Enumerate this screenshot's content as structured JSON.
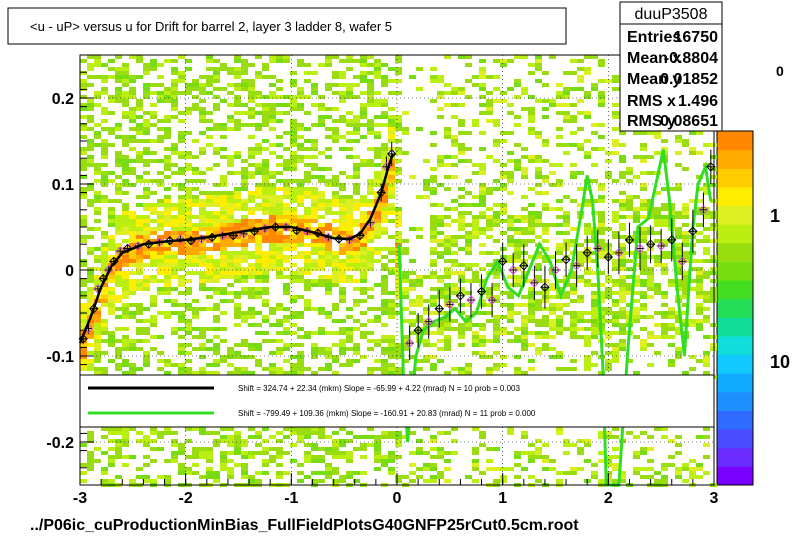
{
  "title": "<u - uP>       versus   u for Drift for barrel 2, layer 3 ladder 8, wafer 5",
  "footer": "../P06ic_cuProductionMinBias_FullFieldPlotsG40GNFP25rCut0.5cm.root",
  "stats": {
    "name": "duuP3508",
    "rows": [
      {
        "label": "Entries",
        "value": "16750"
      },
      {
        "label": "Mean x",
        "value": "-0.8804"
      },
      {
        "label": "Mean y",
        "value": "0.01852"
      },
      {
        "label": "RMS x",
        "value": "1.496"
      },
      {
        "label": "RMS y",
        "value": "0.08651"
      }
    ]
  },
  "legend": {
    "entries": [
      {
        "color": "#000000",
        "text": "Shift =   324.74 + 22.34 (mkm) Slope =   -65.99 + 4.22 (mrad)  N = 10 prob = 0.003"
      },
      {
        "color": "#33dd22",
        "text": "Shift =  -799.49 + 109.36 (mkm) Slope =  -160.91 + 20.83 (mrad)  N = 11 prob = 0.000"
      }
    ]
  },
  "colorbar": {
    "tick_labels": [
      "1",
      "10"
    ],
    "top_label": "0"
  },
  "chart_data": {
    "type": "scatter",
    "xlim": [
      -3,
      3
    ],
    "ylim": [
      -0.25,
      0.25
    ],
    "x_ticks": [
      -3,
      -2,
      -1,
      0,
      1,
      2,
      3
    ],
    "x_tick_labels": [
      "-3",
      "-2",
      "-1",
      "0",
      "1",
      "2",
      "3"
    ],
    "y_ticks": [
      -0.2,
      -0.1,
      0,
      0.1,
      0.2
    ],
    "y_tick_labels": [
      "-0.2",
      "-0.1",
      "0",
      "0.1",
      "0.2"
    ],
    "grid": true,
    "profile_points": [
      {
        "x": -2.97,
        "y": -0.08,
        "e": 0.006
      },
      {
        "x": -2.92,
        "y": -0.068,
        "e": 0.006
      },
      {
        "x": -2.87,
        "y": -0.045,
        "e": 0.006
      },
      {
        "x": -2.83,
        "y": -0.022,
        "e": 0.005
      },
      {
        "x": -2.78,
        "y": -0.01,
        "e": 0.005
      },
      {
        "x": -2.73,
        "y": 0.0,
        "e": 0.005
      },
      {
        "x": -2.68,
        "y": 0.01,
        "e": 0.005
      },
      {
        "x": -2.62,
        "y": 0.022,
        "e": 0.004
      },
      {
        "x": -2.55,
        "y": 0.025,
        "e": 0.004
      },
      {
        "x": -2.45,
        "y": 0.028,
        "e": 0.004
      },
      {
        "x": -2.35,
        "y": 0.03,
        "e": 0.004
      },
      {
        "x": -2.25,
        "y": 0.032,
        "e": 0.004
      },
      {
        "x": -2.15,
        "y": 0.034,
        "e": 0.004
      },
      {
        "x": -2.05,
        "y": 0.036,
        "e": 0.004
      },
      {
        "x": -1.95,
        "y": 0.034,
        "e": 0.004
      },
      {
        "x": -1.85,
        "y": 0.036,
        "e": 0.004
      },
      {
        "x": -1.75,
        "y": 0.038,
        "e": 0.004
      },
      {
        "x": -1.65,
        "y": 0.04,
        "e": 0.004
      },
      {
        "x": -1.55,
        "y": 0.04,
        "e": 0.004
      },
      {
        "x": -1.45,
        "y": 0.042,
        "e": 0.004
      },
      {
        "x": -1.35,
        "y": 0.045,
        "e": 0.004
      },
      {
        "x": -1.25,
        "y": 0.048,
        "e": 0.004
      },
      {
        "x": -1.15,
        "y": 0.05,
        "e": 0.004
      },
      {
        "x": -1.05,
        "y": 0.05,
        "e": 0.004
      },
      {
        "x": -0.95,
        "y": 0.046,
        "e": 0.004
      },
      {
        "x": -0.85,
        "y": 0.045,
        "e": 0.004
      },
      {
        "x": -0.75,
        "y": 0.043,
        "e": 0.004
      },
      {
        "x": -0.65,
        "y": 0.038,
        "e": 0.004
      },
      {
        "x": -0.55,
        "y": 0.036,
        "e": 0.004
      },
      {
        "x": -0.45,
        "y": 0.035,
        "e": 0.004
      },
      {
        "x": -0.35,
        "y": 0.04,
        "e": 0.005
      },
      {
        "x": -0.25,
        "y": 0.055,
        "e": 0.006
      },
      {
        "x": -0.15,
        "y": 0.09,
        "e": 0.01
      },
      {
        "x": -0.1,
        "y": 0.12,
        "e": 0.012
      },
      {
        "x": -0.05,
        "y": 0.135,
        "e": 0.014
      },
      {
        "x": 0.12,
        "y": -0.085,
        "e": 0.02
      },
      {
        "x": 0.2,
        "y": -0.07,
        "e": 0.02
      },
      {
        "x": 0.3,
        "y": -0.06,
        "e": 0.02
      },
      {
        "x": 0.4,
        "y": -0.045,
        "e": 0.022
      },
      {
        "x": 0.5,
        "y": -0.04,
        "e": 0.02
      },
      {
        "x": 0.6,
        "y": -0.03,
        "e": 0.02
      },
      {
        "x": 0.7,
        "y": -0.035,
        "e": 0.02
      },
      {
        "x": 0.8,
        "y": -0.025,
        "e": 0.02
      },
      {
        "x": 0.9,
        "y": -0.035,
        "e": 0.02
      },
      {
        "x": 1.0,
        "y": 0.01,
        "e": 0.022
      },
      {
        "x": 1.1,
        "y": 0.0,
        "e": 0.02
      },
      {
        "x": 1.2,
        "y": 0.005,
        "e": 0.025
      },
      {
        "x": 1.3,
        "y": -0.015,
        "e": 0.02
      },
      {
        "x": 1.4,
        "y": -0.02,
        "e": 0.025
      },
      {
        "x": 1.5,
        "y": 0.0,
        "e": 0.022
      },
      {
        "x": 1.6,
        "y": 0.012,
        "e": 0.02
      },
      {
        "x": 1.7,
        "y": 0.005,
        "e": 0.025
      },
      {
        "x": 1.8,
        "y": 0.02,
        "e": 0.02
      },
      {
        "x": 1.9,
        "y": 0.025,
        "e": 0.022
      },
      {
        "x": 2.0,
        "y": 0.015,
        "e": 0.02
      },
      {
        "x": 2.1,
        "y": 0.02,
        "e": 0.025
      },
      {
        "x": 2.2,
        "y": 0.035,
        "e": 0.02
      },
      {
        "x": 2.3,
        "y": 0.025,
        "e": 0.025
      },
      {
        "x": 2.4,
        "y": 0.03,
        "e": 0.022
      },
      {
        "x": 2.5,
        "y": 0.028,
        "e": 0.02
      },
      {
        "x": 2.6,
        "y": 0.035,
        "e": 0.025
      },
      {
        "x": 2.7,
        "y": 0.01,
        "e": 0.022
      },
      {
        "x": 2.8,
        "y": 0.045,
        "e": 0.025
      },
      {
        "x": 2.9,
        "y": 0.07,
        "e": 0.02
      },
      {
        "x": 2.97,
        "y": 0.12,
        "e": 0.02
      }
    ],
    "black_fit_curve": [
      [
        -3.0,
        -0.085
      ],
      [
        -2.9,
        -0.055
      ],
      [
        -2.8,
        -0.02
      ],
      [
        -2.7,
        0.005
      ],
      [
        -2.6,
        0.02
      ],
      [
        -2.4,
        0.03
      ],
      [
        -2.2,
        0.033
      ],
      [
        -2.0,
        0.035
      ],
      [
        -1.8,
        0.038
      ],
      [
        -1.6,
        0.042
      ],
      [
        -1.4,
        0.046
      ],
      [
        -1.2,
        0.05
      ],
      [
        -1.0,
        0.05
      ],
      [
        -0.8,
        0.044
      ],
      [
        -0.6,
        0.037
      ],
      [
        -0.45,
        0.036
      ],
      [
        -0.35,
        0.042
      ],
      [
        -0.25,
        0.06
      ],
      [
        -0.15,
        0.09
      ],
      [
        -0.08,
        0.12
      ],
      [
        -0.04,
        0.135
      ]
    ],
    "green_fit_curve": [
      [
        0.02,
        0.03
      ],
      [
        0.06,
        -0.12
      ],
      [
        0.1,
        -0.2
      ],
      [
        0.13,
        -0.16
      ],
      [
        0.18,
        -0.1
      ],
      [
        0.25,
        -0.07
      ],
      [
        0.35,
        -0.06
      ],
      [
        0.45,
        -0.055
      ],
      [
        0.55,
        -0.045
      ],
      [
        0.65,
        -0.06
      ],
      [
        0.75,
        -0.05
      ],
      [
        0.85,
        -0.01
      ],
      [
        0.95,
        0.01
      ],
      [
        1.05,
        -0.02
      ],
      [
        1.15,
        -0.03
      ],
      [
        1.25,
        0.0
      ],
      [
        1.35,
        0.03
      ],
      [
        1.45,
        0.01
      ],
      [
        1.55,
        -0.03
      ],
      [
        1.65,
        0.0
      ],
      [
        1.75,
        0.07
      ],
      [
        1.8,
        0.11
      ],
      [
        1.85,
        0.08
      ],
      [
        1.9,
        0.0
      ],
      [
        1.95,
        -0.12
      ],
      [
        1.98,
        -0.25
      ],
      [
        2.1,
        -0.25
      ],
      [
        2.18,
        -0.1
      ],
      [
        2.28,
        0.05
      ],
      [
        2.38,
        0.06
      ],
      [
        2.45,
        0.1
      ],
      [
        2.52,
        0.14
      ],
      [
        2.58,
        0.08
      ],
      [
        2.65,
        -0.02
      ],
      [
        2.72,
        -0.1
      ],
      [
        2.8,
        0.05
      ],
      [
        2.85,
        0.1
      ],
      [
        2.92,
        0.12
      ],
      [
        2.97,
        0.08
      ]
    ]
  }
}
